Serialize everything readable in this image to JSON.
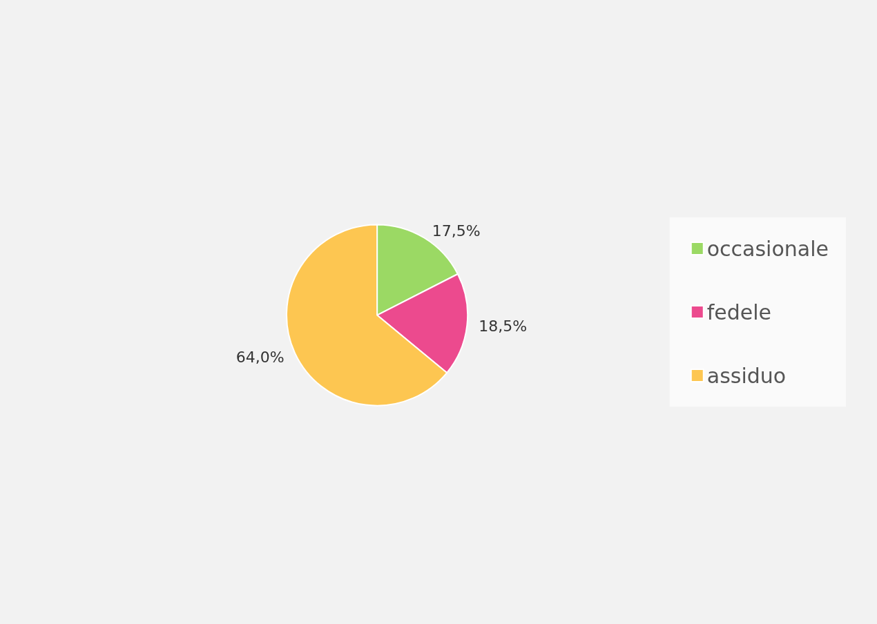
{
  "chart_data": {
    "type": "pie",
    "categories": [
      "occasionale",
      "fedele",
      "assiduo"
    ],
    "values": [
      17.5,
      18.5,
      64.0
    ],
    "value_labels": [
      "17,5%",
      "18,5%",
      "64,0%"
    ],
    "colors": [
      "#9bd964",
      "#ec4a8e",
      "#fdc651"
    ],
    "legend": "right"
  }
}
